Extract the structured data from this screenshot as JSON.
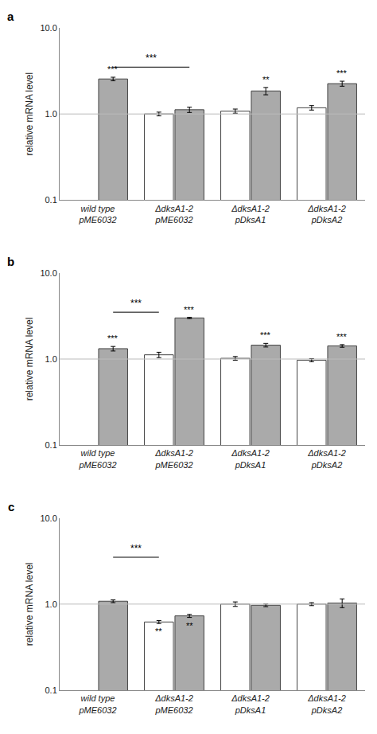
{
  "chart_data": [
    {
      "type": "bar",
      "title": "a",
      "categories": [
        "wild type\npME6032",
        "ΔdksA1-2\npME6032",
        "ΔdksA1-2\npDksA1",
        "ΔdksA1-2\npDksA2"
      ],
      "series": [
        {
          "color": "#ffffff",
          "values": [
            null,
            1.0,
            1.08,
            1.18
          ],
          "errors": [
            null,
            0.05,
            0.06,
            0.07
          ],
          "stars": [
            null,
            null,
            null,
            null
          ]
        },
        {
          "color": "#aaaaaa",
          "values": [
            2.55,
            1.12,
            1.85,
            2.25
          ],
          "errors": [
            0.12,
            0.08,
            0.18,
            0.15
          ],
          "stars": [
            "***",
            null,
            "**",
            "***"
          ]
        }
      ],
      "ylabel": "relative mRNA level",
      "log": "y",
      "grid": false,
      "ylim": [
        0.1,
        10.0
      ],
      "yticks": [
        0.1,
        {
          "value": 1.0,
          "label": "1.0"
        },
        {
          "value": 10.0,
          "label": "10.0"
        }
      ],
      "reference_line": 1.0,
      "bracket": {
        "from": {
          "category": 0,
          "series": 1
        },
        "to": {
          "category": 1,
          "series": 1
        },
        "y": 3.5,
        "label": "***"
      }
    },
    {
      "type": "bar",
      "title": "b",
      "categories": [
        "wild type\npME6032",
        "ΔdksA1-2\npME6032",
        "ΔdksA1-2\npDksA1",
        "ΔdksA1-2\npDksA2"
      ],
      "series": [
        {
          "color": "#ffffff",
          "values": [
            null,
            1.12,
            1.02,
            0.97
          ],
          "errors": [
            null,
            0.08,
            0.05,
            0.04
          ],
          "stars": [
            null,
            null,
            null,
            null
          ]
        },
        {
          "color": "#aaaaaa",
          "values": [
            1.32,
            3.0,
            1.45,
            1.42
          ],
          "errors": [
            0.08,
            0.05,
            0.07,
            0.05
          ],
          "stars": [
            "***",
            "***",
            "***",
            "***"
          ]
        }
      ],
      "ylabel": "relative mRNA level",
      "log": "y",
      "grid": false,
      "ylim": [
        0.1,
        10.0
      ],
      "yticks": [
        0.1,
        {
          "value": 1.0,
          "label": "1.0"
        },
        {
          "value": 10.0,
          "label": "10.0"
        }
      ],
      "reference_line": 1.0,
      "bracket": {
        "from": {
          "category": 0,
          "series": 1
        },
        "to": {
          "category": 1,
          "series": 0
        },
        "y": 3.5,
        "label": "***"
      }
    },
    {
      "type": "bar",
      "title": "c",
      "categories": [
        "wild type\npME6032",
        "ΔdksA1-2\npME6032",
        "ΔdksA1-2\npDksA1",
        "ΔdksA1-2\npDksA2"
      ],
      "series": [
        {
          "color": "#ffffff",
          "values": [
            null,
            0.62,
            1.0,
            1.0
          ],
          "errors": [
            null,
            0.025,
            0.06,
            0.04
          ],
          "stars": [
            null,
            "**",
            null,
            null
          ]
        },
        {
          "color": "#aaaaaa",
          "values": [
            1.08,
            0.73,
            0.97,
            1.03
          ],
          "errors": [
            0.04,
            0.03,
            0.035,
            0.12
          ],
          "stars": [
            null,
            "**",
            null,
            null
          ]
        }
      ],
      "ylabel": "relative mRNA level",
      "log": "y",
      "grid": false,
      "ylim": [
        0.1,
        10.0
      ],
      "yticks": [
        0.1,
        {
          "value": 1.0,
          "label": "1.0"
        },
        {
          "value": 10.0,
          "label": "10.0"
        }
      ],
      "reference_line": 1.0,
      "bracket": {
        "from": {
          "category": 0,
          "series": 1
        },
        "to": {
          "category": 1,
          "series": 0
        },
        "y": 3.5,
        "label": "***"
      }
    }
  ]
}
